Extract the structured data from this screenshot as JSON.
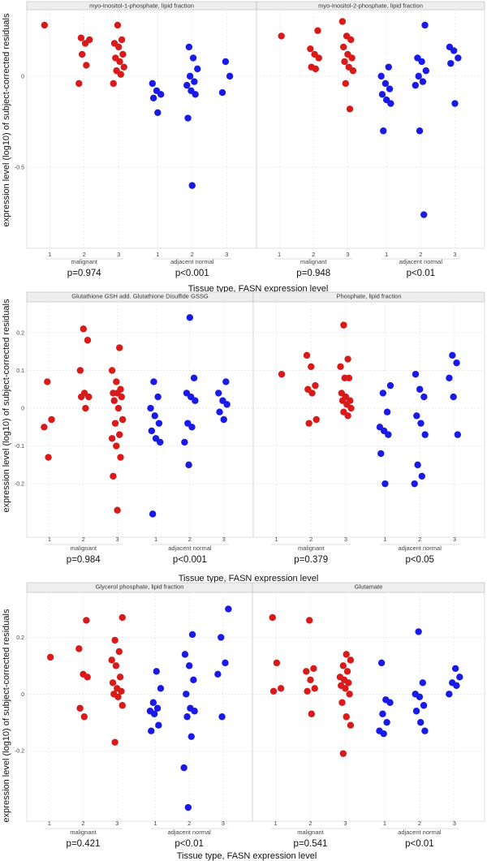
{
  "figure": {
    "ylabel": "expression level (log10) of subject-corrected residuals",
    "xlabel": "Tissue type, FASN expression level",
    "group_labels": [
      "malignant",
      "adjacent normal"
    ],
    "level_labels": [
      "1",
      "2",
      "3"
    ],
    "colors": {
      "malignant": "#d91a1a",
      "adjacent_normal": "#1a1ae6"
    }
  },
  "chart_data": [
    {
      "type": "scatter",
      "title": "myo-Inositol-1-phosphate, lipid fraction",
      "ylim": [
        -0.9,
        0.32
      ],
      "yticks": [
        0,
        -0.5
      ],
      "ytick_labels": [
        "0",
        "-0.5"
      ],
      "pvalues": [
        "p=0.974",
        "p<0.001"
      ],
      "series": [
        {
          "name": "malignant",
          "values": [
            [
              0.28
            ],
            [
              0.21,
              0.18,
              0.2,
              0.12,
              0.06,
              -0.04
            ],
            [
              0.28,
              0.2,
              0.18,
              0.16,
              0.12,
              0.1,
              0.08,
              0.05,
              0.03,
              0.01,
              -0.04
            ]
          ]
        },
        {
          "name": "adjacent normal",
          "values": [
            [
              -0.04,
              -0.08,
              -0.1,
              -0.12,
              -0.2
            ],
            [
              0.16,
              0.1,
              0.04,
              0.0,
              -0.03,
              -0.05,
              -0.08,
              -0.1,
              -0.23,
              -0.6
            ],
            [
              0.08,
              0.0,
              -0.09
            ]
          ]
        }
      ]
    },
    {
      "type": "scatter",
      "title": "myo-Inositol-2-phosphate, lipid fraction",
      "ylim": [
        -0.9,
        0.32
      ],
      "yticks": [
        0,
        -0.5
      ],
      "ytick_labels": [
        "0",
        "-0.5"
      ],
      "pvalues": [
        "p=0.948",
        "p<0.01"
      ],
      "series": [
        {
          "name": "malignant",
          "values": [
            [
              0.22
            ],
            [
              0.25,
              0.15,
              0.12,
              0.1,
              0.05,
              0.04
            ],
            [
              0.3,
              0.22,
              0.2,
              0.16,
              0.12,
              0.1,
              0.08,
              0.05,
              0.03,
              -0.04,
              -0.18
            ]
          ]
        },
        {
          "name": "adjacent normal",
          "values": [
            [
              0.05,
              0.0,
              -0.04,
              -0.07,
              -0.1,
              -0.13,
              -0.15,
              -0.3
            ],
            [
              0.28,
              0.1,
              0.08,
              0.03,
              0.0,
              -0.03,
              -0.05,
              -0.3,
              -0.76
            ],
            [
              0.16,
              0.14,
              0.1,
              0.07,
              -0.15
            ]
          ]
        }
      ]
    },
    {
      "type": "scatter",
      "title": "Glutathione GSH add. Glutathione Disulfide GSSG",
      "ylim": [
        -0.32,
        0.26
      ],
      "yticks": [
        0.2,
        0.1,
        0,
        -0.1,
        -0.2
      ],
      "ytick_labels": [
        "0.2",
        "0.1",
        "0",
        "-0.1",
        "-0.2"
      ],
      "pvalues": [
        "p=0.984",
        "p<0.001"
      ],
      "series": [
        {
          "name": "malignant",
          "values": [
            [
              0.07,
              -0.03,
              -0.05,
              -0.13
            ],
            [
              0.21,
              0.18,
              0.1,
              0.04,
              0.03,
              0.03,
              0.0
            ],
            [
              0.16,
              0.1,
              0.07,
              0.05,
              0.04,
              0.04,
              0.03,
              0.02,
              0.0,
              -0.03,
              -0.04,
              -0.07,
              -0.08,
              -0.1,
              -0.13,
              -0.18,
              -0.27
            ]
          ]
        },
        {
          "name": "adjacent normal",
          "values": [
            [
              0.07,
              0.03,
              0.0,
              -0.02,
              -0.04,
              -0.06,
              -0.08,
              -0.09,
              -0.28
            ],
            [
              0.24,
              0.08,
              0.04,
              0.03,
              0.02,
              -0.04,
              -0.05,
              -0.09,
              -0.15
            ],
            [
              0.07,
              0.04,
              0.02,
              0.01,
              -0.01,
              -0.03
            ]
          ]
        }
      ]
    },
    {
      "type": "scatter",
      "title": "Phosphate, lipid fraction",
      "ylim": [
        -0.32,
        0.26
      ],
      "yticks": [
        0.2,
        0.1,
        0,
        -0.1,
        -0.2
      ],
      "ytick_labels": [
        "0.2",
        "0.1",
        "0",
        "-0.1",
        "-0.2"
      ],
      "pvalues": [
        "p=0.379",
        "p<0.05"
      ],
      "series": [
        {
          "name": "malignant",
          "values": [
            [
              0.09
            ],
            [
              0.14,
              0.11,
              0.06,
              0.05,
              0.04,
              -0.03,
              -0.04
            ],
            [
              0.22,
              0.13,
              0.11,
              0.08,
              0.08,
              0.04,
              0.03,
              0.02,
              0.02,
              0.01,
              0.0,
              -0.01,
              -0.02
            ]
          ]
        },
        {
          "name": "adjacent normal",
          "values": [
            [
              0.06,
              0.04,
              -0.01,
              -0.05,
              -0.06,
              -0.07,
              -0.12,
              -0.2
            ],
            [
              0.09,
              0.05,
              0.03,
              -0.02,
              -0.04,
              -0.07,
              -0.15,
              -0.18,
              -0.2
            ],
            [
              0.14,
              0.12,
              0.08,
              0.03,
              -0.07
            ]
          ]
        }
      ]
    },
    {
      "type": "scatter",
      "title": "Glycerol phosphate, lipid fraction",
      "ylim": [
        -0.42,
        0.33
      ],
      "yticks": [
        0.2,
        0,
        -0.2
      ],
      "ytick_labels": [
        "0.2",
        "0",
        "-0.2"
      ],
      "pvalues": [
        "p=0.421",
        "p<0.01"
      ],
      "series": [
        {
          "name": "malignant",
          "values": [
            [
              0.13
            ],
            [
              0.26,
              0.16,
              0.07,
              0.06,
              -0.05,
              -0.08
            ],
            [
              0.27,
              0.19,
              0.15,
              0.12,
              0.1,
              0.06,
              0.04,
              0.02,
              0.01,
              0.0,
              -0.01,
              -0.04,
              -0.17
            ]
          ]
        },
        {
          "name": "adjacent normal",
          "values": [
            [
              0.08,
              0.02,
              -0.03,
              -0.05,
              -0.06,
              -0.07,
              -0.11,
              -0.13
            ],
            [
              0.21,
              0.14,
              0.1,
              0.05,
              0.0,
              -0.05,
              -0.06,
              -0.08,
              -0.15,
              -0.26,
              -0.4
            ],
            [
              0.3,
              0.2,
              0.11,
              0.07,
              -0.08
            ]
          ]
        }
      ]
    },
    {
      "type": "scatter",
      "title": "Glutamate",
      "ylim": [
        -0.42,
        0.33
      ],
      "yticks": [
        0.2,
        0,
        -0.2
      ],
      "ytick_labels": [
        "0.2",
        "0",
        "-0.2"
      ],
      "pvalues": [
        "p=0.541",
        "p<0.01"
      ],
      "series": [
        {
          "name": "malignant",
          "values": [
            [
              0.27,
              0.11,
              0.02,
              0.01
            ],
            [
              0.26,
              0.09,
              0.08,
              0.05,
              0.02,
              0.01,
              -0.07
            ],
            [
              0.14,
              0.12,
              0.1,
              0.08,
              0.06,
              0.05,
              0.04,
              0.03,
              0.02,
              0.0,
              -0.03,
              -0.08,
              -0.11,
              -0.21
            ]
          ]
        },
        {
          "name": "adjacent normal",
          "values": [
            [
              0.11,
              -0.02,
              -0.03,
              -0.07,
              -0.1,
              -0.13,
              -0.14
            ],
            [
              0.22,
              0.04,
              0.0,
              -0.01,
              -0.04,
              -0.06,
              -0.1,
              -0.13
            ],
            [
              0.09,
              0.06,
              0.04,
              0.03,
              0.0
            ]
          ]
        }
      ]
    }
  ]
}
